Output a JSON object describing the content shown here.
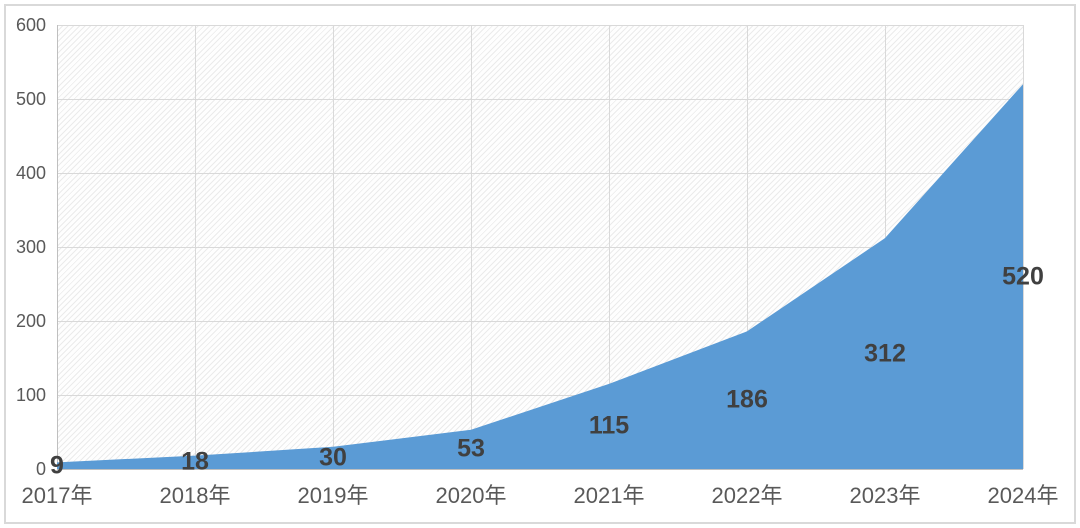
{
  "chart_data": {
    "type": "area",
    "title": "",
    "xlabel": "",
    "ylabel": "",
    "categories": [
      "2017年",
      "2018年",
      "2019年",
      "2020年",
      "2021年",
      "2022年",
      "2023年",
      "2024年"
    ],
    "values": [
      9,
      18,
      30,
      53,
      115,
      186,
      312,
      520
    ],
    "yticks": [
      0,
      100,
      200,
      300,
      400,
      500,
      600
    ],
    "ylim": [
      0,
      600
    ],
    "grid": true,
    "legend": false,
    "data_labels_shown": true,
    "plot_background": "light-diagonal-hatch",
    "colors": {
      "area_fill": "#5B9BD5",
      "data_label_text": "#404040",
      "axis_tick_text": "#595959",
      "gridline": "#D9D9D9",
      "axis_line": "#BFBFBF",
      "hatch_line": "#E9E9E9",
      "chart_border": "#D9D9D9",
      "background": "#FFFFFF"
    }
  }
}
